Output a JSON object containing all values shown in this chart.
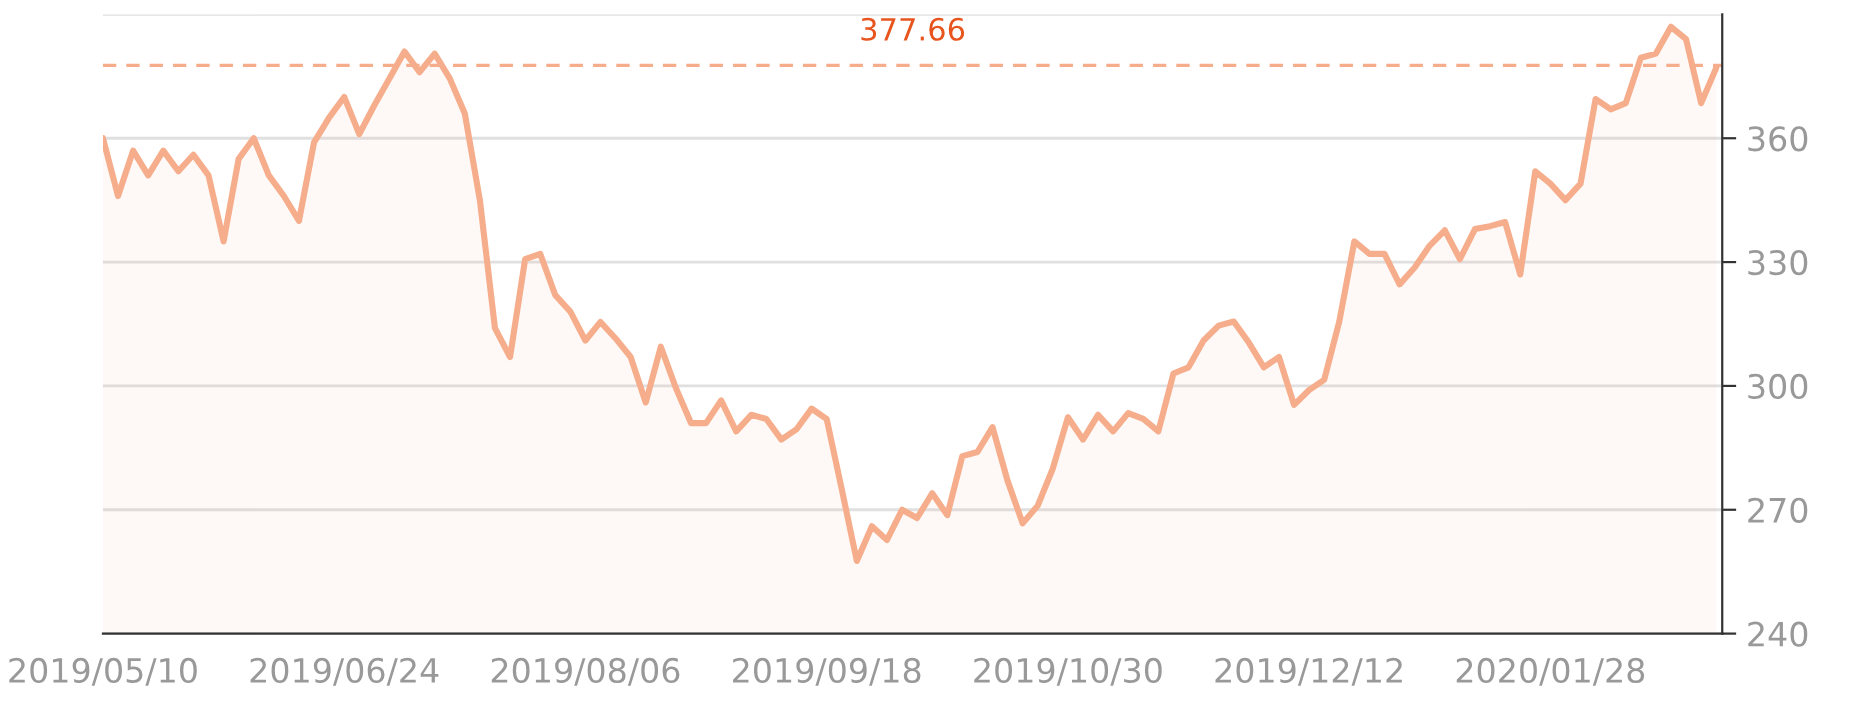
{
  "chart_data": {
    "type": "area",
    "categories": [
      "2019/05/10",
      null,
      null,
      null,
      null,
      null,
      null,
      null,
      null,
      null,
      null,
      null,
      null,
      null,
      null,
      null,
      "2019/06/24",
      null,
      null,
      null,
      null,
      null,
      null,
      null,
      null,
      null,
      null,
      null,
      null,
      null,
      null,
      null,
      "2019/08/06",
      null,
      null,
      null,
      null,
      null,
      null,
      null,
      null,
      null,
      null,
      null,
      null,
      null,
      null,
      null,
      "2019/09/18",
      null,
      null,
      null,
      null,
      null,
      null,
      null,
      null,
      null,
      null,
      null,
      null,
      null,
      null,
      null,
      "2019/10/30",
      null,
      null,
      null,
      null,
      null,
      null,
      null,
      null,
      null,
      null,
      null,
      null,
      null,
      null,
      null,
      "2019/12/12",
      null,
      null,
      null,
      null,
      null,
      null,
      null,
      null,
      null,
      null,
      null,
      null,
      null,
      null,
      null,
      "2020/01/28",
      null,
      null,
      null,
      null,
      null,
      null,
      null,
      null,
      null,
      null,
      null
    ],
    "series": [
      {
        "color": "#f5ad8c",
        "values": [
          360,
          346,
          357,
          351,
          357,
          352,
          356,
          351,
          335,
          355,
          360,
          351,
          346,
          340,
          359,
          365,
          370,
          361,
          368,
          374.5,
          381,
          376,
          380.5,
          374.5,
          366,
          345,
          314,
          307,
          330.7,
          332,
          322,
          318,
          311,
          315.5,
          311.5,
          307,
          296,
          309.5,
          299.5,
          291,
          291,
          296.5,
          289,
          293,
          292,
          287,
          289.5,
          294.5,
          292,
          275,
          257.6,
          266,
          262.7,
          270,
          268,
          274,
          268.7,
          283,
          284,
          290,
          277,
          266.7,
          271,
          280,
          292.4,
          287,
          293,
          289,
          293.4,
          292,
          289,
          303,
          304.5,
          311,
          314.6,
          315.6,
          310.5,
          304.5,
          307,
          295.4,
          299,
          301.5,
          315.6,
          335,
          332,
          332,
          324.6,
          328.7,
          334,
          337.7,
          330.7,
          338,
          338.7,
          339.7,
          327,
          352,
          349,
          345,
          349,
          369.5,
          367,
          368.5,
          379.5,
          380.5,
          387,
          384,
          368.5,
          377
        ]
      }
    ],
    "ylim": [
      240,
      390
    ],
    "yticks": [
      240,
      270,
      300,
      330,
      360
    ],
    "grid": "y",
    "ref_lines": [
      {
        "axis": "y",
        "value": 377.66,
        "label": "377.66",
        "color": "#f5ad8c",
        "line_style": "dashed"
      }
    ]
  }
}
